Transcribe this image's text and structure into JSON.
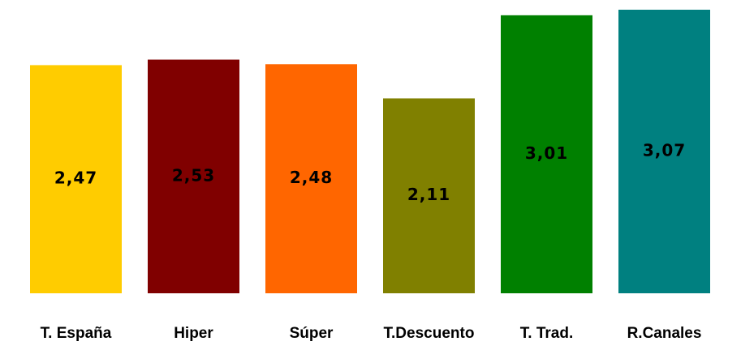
{
  "chart_data": {
    "type": "bar",
    "categories": [
      "T. España",
      "Hiper",
      "Súper",
      "T.Descuento",
      "T. Trad.",
      "R.Canales"
    ],
    "values": [
      2.47,
      2.53,
      2.48,
      2.11,
      3.01,
      3.07
    ],
    "value_labels": [
      "2,47",
      "2,53",
      "2,48",
      "2,11",
      "3,01",
      "3,07"
    ],
    "colors": [
      "#ffcc00",
      "#800000",
      "#ff6600",
      "#808000",
      "#008000",
      "#008080"
    ]
  }
}
